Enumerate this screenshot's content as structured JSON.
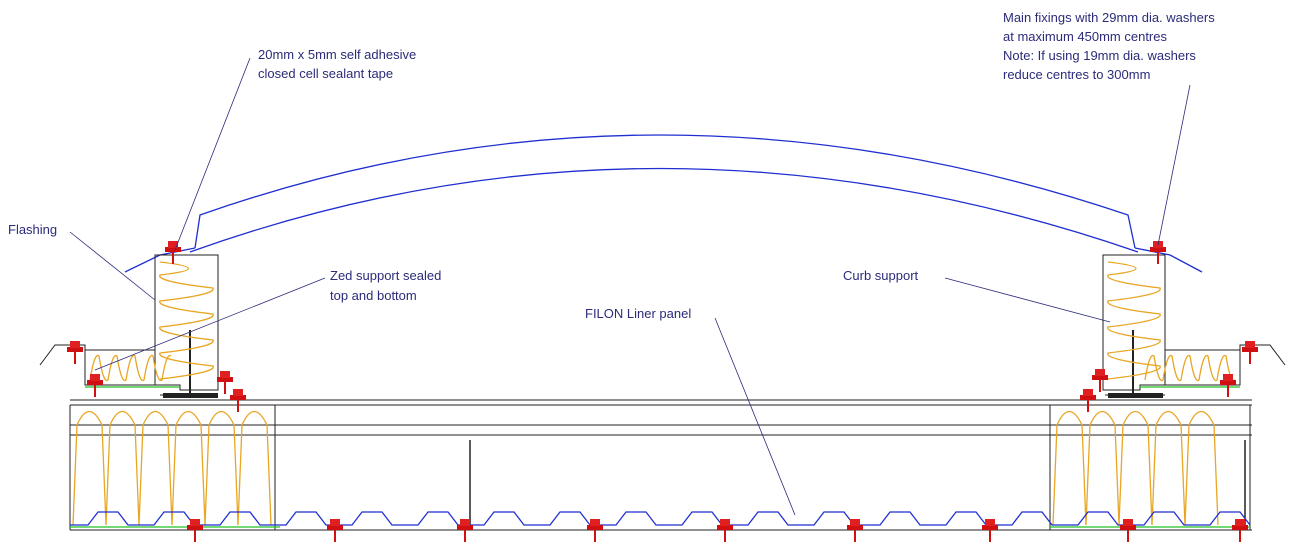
{
  "labels": [
    {
      "lines": [
        "20mm x 5mm self adhesive",
        "closed cell sealant tape"
      ]
    },
    {
      "lines": [
        "Main fixings with 29mm dia. washers",
        "at maximum 450mm centres",
        "Note: If using 19mm dia. washers",
        "reduce centres to 300mm"
      ]
    },
    {
      "lines": [
        "Flashing"
      ]
    },
    {
      "lines": [
        "Zed support sealed",
        "top and bottom"
      ]
    },
    {
      "lines": [
        "FILON Liner panel"
      ]
    },
    {
      "lines": [
        "Curb support"
      ]
    }
  ]
}
